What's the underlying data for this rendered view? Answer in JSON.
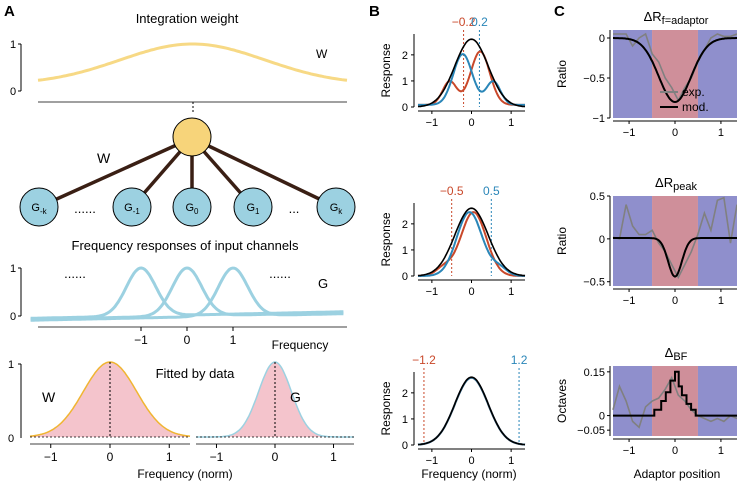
{
  "panels": {
    "a": "A",
    "b": "B",
    "c": "C"
  },
  "panel_a": {
    "title": "Integration weight",
    "weight_label": "W",
    "net_label": "W",
    "nodes": [
      "G-k",
      "......",
      "G-1",
      "G0",
      "G1",
      "...",
      "Gk"
    ],
    "freq_title": "Frequency responses of input channels",
    "g_label": "G",
    "dots": "......",
    "freq_xticks": [
      "−1",
      "0",
      "1"
    ],
    "freq_xlabel": "Frequency",
    "fitted_title": "Fitted by data",
    "fit_w_label": "W",
    "fit_g_label": "G",
    "fit_xticks": [
      "−1",
      "0",
      "1"
    ],
    "fit_xlabel": "Frequency (norm)",
    "yticks_1": "1",
    "yticks_0": "0",
    "colors": {
      "weight": "#f7d985",
      "node": "#f7d47a",
      "gauss": "#9cd1e1",
      "fill": "#f4c4cc"
    }
  },
  "panel_b": {
    "ylabel": "Response",
    "xlabel": "Frequency (norm)",
    "xticks": [
      "−1",
      "0",
      "1"
    ],
    "rows": [
      {
        "left": "−0.2",
        "right": "0.2",
        "yticks": [
          "0",
          "1",
          "2"
        ]
      },
      {
        "left": "−0.5",
        "right": "0.5",
        "yticks": [
          "0",
          "1",
          "2"
        ]
      },
      {
        "left": "−1.2",
        "right": "1.2",
        "yticks": [
          "0",
          "1",
          "2"
        ]
      }
    ],
    "colors": {
      "black": "#000000",
      "red": "#c9482a",
      "blue": "#2a86b8"
    }
  },
  "panel_c": {
    "xlabel": "Adaptor position",
    "xticks": [
      "−1",
      "0",
      "1"
    ],
    "legend": {
      "exp": "exp.",
      "mod": "mod."
    },
    "rows": [
      {
        "title": "ΔR",
        "sub": "f=adaptor",
        "ylabel": "Ratio",
        "yticks": [
          "0",
          "−0.5",
          "−1"
        ]
      },
      {
        "title": "ΔR",
        "sub": "peak",
        "ylabel": "Ratio",
        "yticks": [
          "0.5",
          "0",
          "−0.5"
        ]
      },
      {
        "title": "Δ",
        "sub": "BF",
        "ylabel": "Octaves",
        "yticks": [
          "0.15",
          "0",
          "−0.05"
        ]
      }
    ],
    "colors": {
      "blue_band": "#8f8fcc",
      "red_band": "#cf8f9a",
      "exp": "#808080",
      "mod": "#000000"
    }
  },
  "chart_data": [
    {
      "type": "line",
      "title": "Integration weight",
      "series": [
        {
          "name": "W",
          "shape": "broad gaussian"
        }
      ]
    },
    {
      "type": "line",
      "title": "Frequency responses of input channels",
      "x": [
        -1,
        0,
        1
      ],
      "series": [
        {
          "name": "G",
          "centers": [
            -1,
            0,
            1
          ]
        }
      ]
    },
    {
      "type": "area",
      "title": "Fitted by data",
      "series": [
        {
          "name": "W",
          "center": 0,
          "sigma": 0.45
        },
        {
          "name": "G",
          "center": 0,
          "sigma": 0.28
        }
      ]
    },
    {
      "type": "line",
      "ylabel": "Response",
      "adaptor_positions": [
        -0.2,
        0.2
      ],
      "ylim": [
        0,
        2.8
      ],
      "xlim": [
        -1.35,
        1.35
      ]
    },
    {
      "type": "line",
      "ylabel": "Response",
      "adaptor_positions": [
        -0.5,
        0.5
      ],
      "ylim": [
        0,
        2.8
      ],
      "xlim": [
        -1.35,
        1.35
      ]
    },
    {
      "type": "line",
      "ylabel": "Response",
      "adaptor_positions": [
        -1.2,
        1.2
      ],
      "ylim": [
        0,
        2.8
      ],
      "xlim": [
        -1.35,
        1.35
      ]
    },
    {
      "type": "line",
      "title": "ΔR f=adaptor",
      "ylabel": "Ratio",
      "ylim": [
        -1,
        0.1
      ],
      "xlabel": "Adaptor position"
    },
    {
      "type": "line",
      "title": "ΔR peak",
      "ylabel": "Ratio",
      "ylim": [
        -0.55,
        0.5
      ]
    },
    {
      "type": "line",
      "title": "ΔBF",
      "ylabel": "Octaves",
      "ylim": [
        -0.07,
        0.17
      ]
    }
  ]
}
